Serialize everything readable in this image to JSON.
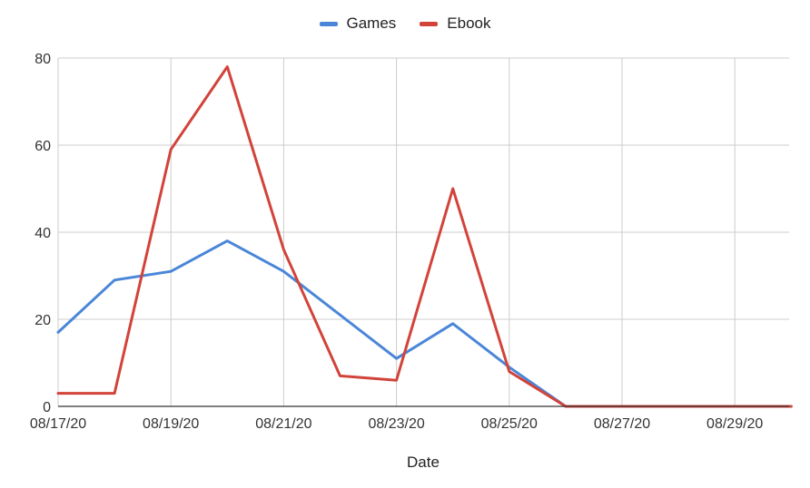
{
  "chart_data": {
    "type": "line",
    "title": "",
    "xlabel": "Date",
    "ylabel": "",
    "x": [
      "08/17/20",
      "08/18/20",
      "08/19/20",
      "08/20/20",
      "08/21/20",
      "08/22/20",
      "08/23/20",
      "08/24/20",
      "08/25/20",
      "08/26/20",
      "08/27/20",
      "08/28/20",
      "08/29/20",
      "08/30/20"
    ],
    "x_tick_labels": [
      "08/17/20",
      "08/19/20",
      "08/21/20",
      "08/23/20",
      "08/25/20",
      "08/27/20",
      "08/29/20"
    ],
    "y_ticks": [
      0,
      20,
      40,
      60,
      80
    ],
    "ylim": [
      0,
      80
    ],
    "grid": true,
    "legend_position": "top-center",
    "series": [
      {
        "name": "Games",
        "color": "#4a86d8",
        "values": [
          17,
          29,
          31,
          38,
          31,
          21,
          11,
          19,
          9,
          0,
          0,
          0,
          0,
          0
        ]
      },
      {
        "name": "Ebook",
        "color": "#d2433a",
        "values": [
          3,
          3,
          59,
          78,
          36,
          7,
          6,
          50,
          8,
          0,
          0,
          0,
          0,
          0
        ]
      }
    ]
  }
}
